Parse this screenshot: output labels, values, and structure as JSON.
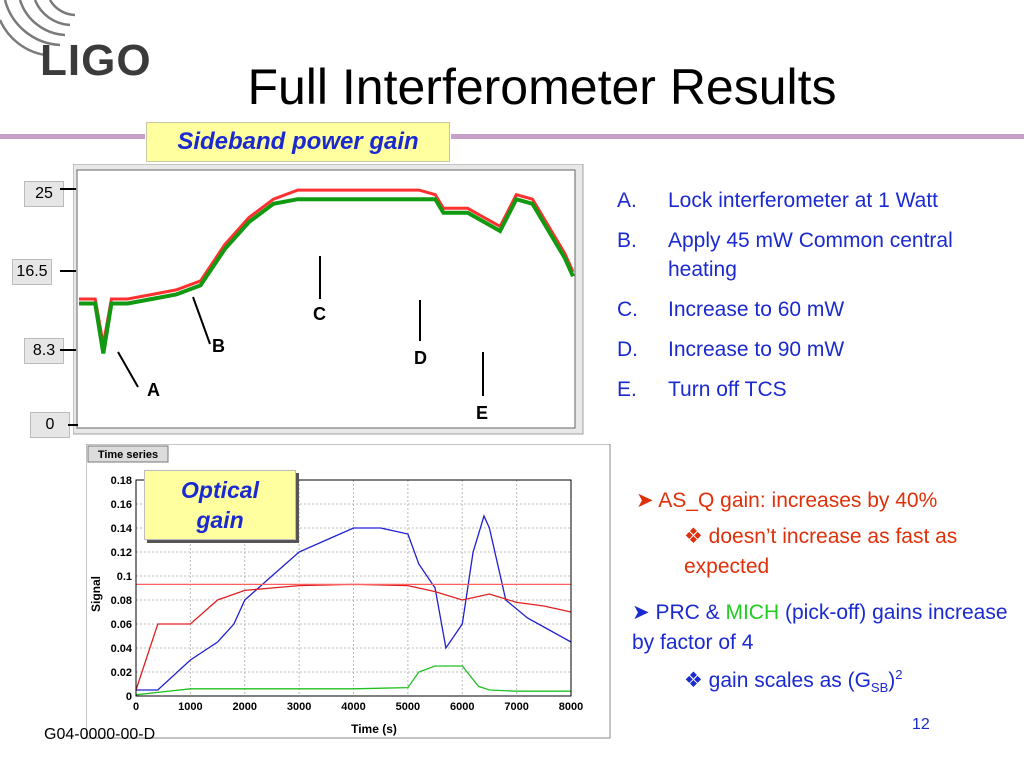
{
  "slide": {
    "logo": "LIGO",
    "title": "Full Interferometer Results",
    "footer_id": "G04-0000-00-D",
    "page_number": "12"
  },
  "sideband_panel": {
    "label": "Sideband power gain",
    "y_ticks": [
      "25",
      "16.5",
      "8.3",
      "0"
    ],
    "markers": [
      "A",
      "B",
      "C",
      "D",
      "E"
    ]
  },
  "steps": [
    {
      "key": "A.",
      "text": "Lock interferometer at 1 Watt"
    },
    {
      "key": "B.",
      "text": "Apply 45 mW Common central heating"
    },
    {
      "key": "C.",
      "text": "Increase to 60 mW"
    },
    {
      "key": "D.",
      "text": "Increase to 90 mW"
    },
    {
      "key": "E.",
      "text": "Turn off TCS"
    }
  ],
  "optical_panel": {
    "label_line1": "Optical",
    "label_line2": "gain",
    "header_tab": "Time series",
    "ylabel": "Signal",
    "xlabel": "Time (s)"
  },
  "bullets": {
    "asq": "AS_Q gain: increases by 40%",
    "asq_sub": "doesn’t increase as fast as expected",
    "prc_a": "PRC &",
    "prc_mich": "MICH",
    "prc_b": "(pick-off) gains increase by factor of 4",
    "gain_sub_pre": "gain scales as (G",
    "gain_sub_subscript": "SB",
    "gain_sub_post": ")",
    "gain_sub_sup": "2"
  },
  "colors": {
    "title_rule": "#c7a0c7",
    "blue_text": "#1a2ad0",
    "orange_text": "#e0300a",
    "green_text": "#22cc22",
    "highlight_bg": "#ffffa0"
  },
  "chart_data": [
    {
      "type": "line",
      "title": "Sideband power gain",
      "xlabel": "",
      "ylabel": "",
      "ylim": [
        0,
        28
      ],
      "yticks": [
        0,
        8.3,
        16.5,
        25
      ],
      "grid": false,
      "annotations": [
        "A",
        "B",
        "C",
        "D",
        "E"
      ],
      "series": [
        {
          "color": "#ff3030",
          "x": [
            0,
            200,
            300,
            400,
            600,
            900,
            1200,
            1500,
            1800,
            2100,
            2400,
            2700,
            3000,
            3300,
            3600,
            3900,
            4200,
            4400,
            4500,
            4600,
            4800,
            5000,
            5200,
            5400,
            5600,
            5800,
            6000,
            6100
          ],
          "y": [
            14,
            14,
            9,
            14,
            14,
            14.5,
            15,
            16,
            20,
            23,
            25,
            26,
            26,
            26,
            26,
            26,
            26,
            25.5,
            24,
            24,
            24,
            23,
            22,
            25.5,
            25,
            22,
            19,
            17
          ]
        },
        {
          "color": "#119911",
          "x": [
            0,
            200,
            300,
            400,
            600,
            900,
            1200,
            1500,
            1800,
            2100,
            2400,
            2700,
            3000,
            3300,
            3600,
            3900,
            4200,
            4400,
            4500,
            4600,
            4800,
            5000,
            5200,
            5400,
            5600,
            5800,
            6000,
            6100
          ],
          "y": [
            13.5,
            13.5,
            8,
            13.5,
            13.5,
            14,
            14.5,
            15.5,
            19.5,
            22.5,
            24.5,
            25,
            25,
            25,
            25,
            25,
            25,
            25,
            23.5,
            23.5,
            23.5,
            22.5,
            21.5,
            25,
            24.5,
            21.5,
            18.5,
            16.5
          ]
        }
      ]
    },
    {
      "type": "line",
      "title": "Optical gain",
      "xlabel": "Time (s)",
      "ylabel": "Signal",
      "xlim": [
        0,
        8000
      ],
      "ylim": [
        0,
        0.18
      ],
      "xticks": [
        0,
        1000,
        2000,
        3000,
        4000,
        5000,
        6000,
        7000,
        8000
      ],
      "yticks": [
        0,
        0.02,
        0.04,
        0.06,
        0.08,
        0.1,
        0.12,
        0.14,
        0.16,
        0.18
      ],
      "grid": true,
      "series": [
        {
          "color": "#2020d0",
          "x": [
            0,
            400,
            1000,
            1500,
            1800,
            2000,
            2500,
            3000,
            3500,
            4000,
            4500,
            5000,
            5200,
            5500,
            5700,
            6000,
            6200,
            6400,
            6500,
            6800,
            7200,
            7600,
            8000
          ],
          "y": [
            0.005,
            0.005,
            0.03,
            0.045,
            0.06,
            0.08,
            0.1,
            0.12,
            0.13,
            0.14,
            0.14,
            0.135,
            0.11,
            0.09,
            0.04,
            0.06,
            0.12,
            0.15,
            0.14,
            0.08,
            0.065,
            0.055,
            0.045
          ]
        },
        {
          "color": "#e02020",
          "x": [
            0,
            400,
            1000,
            1500,
            2000,
            2500,
            3000,
            4000,
            5000,
            5500,
            6000,
            6500,
            7000,
            7500,
            8000
          ],
          "y": [
            0.005,
            0.06,
            0.06,
            0.08,
            0.088,
            0.09,
            0.092,
            0.093,
            0.092,
            0.087,
            0.08,
            0.085,
            0.078,
            0.075,
            0.07
          ]
        },
        {
          "color": "#20c020",
          "x": [
            0,
            400,
            1000,
            2000,
            3000,
            4000,
            5000,
            5200,
            5500,
            6000,
            6300,
            6500,
            7000,
            8000
          ],
          "y": [
            0.001,
            0.003,
            0.006,
            0.006,
            0.006,
            0.006,
            0.007,
            0.02,
            0.025,
            0.025,
            0.008,
            0.005,
            0.004,
            0.004
          ]
        },
        {
          "color": "#ff6060",
          "x": [
            0,
            8000
          ],
          "y": [
            0.093,
            0.093
          ]
        }
      ]
    }
  ]
}
